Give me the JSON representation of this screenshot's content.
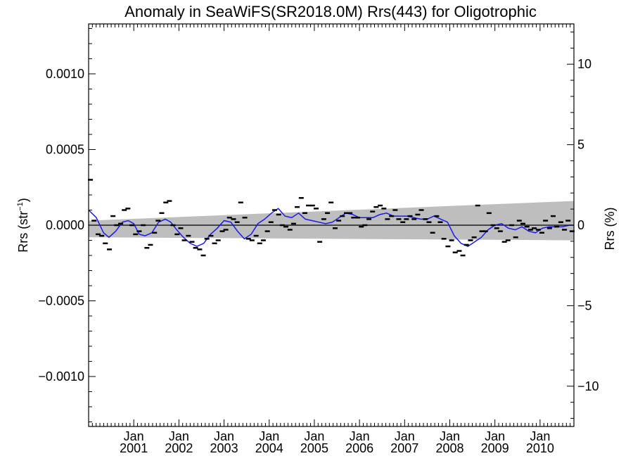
{
  "chart_data": {
    "type": "scatter",
    "title": "Anomaly in SeaWiFS(SR2018.0M) Rrs(443) for Oligotrophic",
    "ylabel_main": "Rrs (str",
    "ylabel_sup": "−1",
    "ylabel_close": ")",
    "y2label": "Rrs (%)",
    "xlim": [
      2000.0,
      2010.75
    ],
    "ylim": [
      -0.00133,
      0.00133
    ],
    "y2lim": [
      -12.5,
      12.5
    ],
    "grid": false,
    "zero_line": true,
    "y_ticks": [
      {
        "value": 0.001,
        "label": "0.0010"
      },
      {
        "value": 0.0005,
        "label": "0.0005"
      },
      {
        "value": 0.0,
        "label": "0.0000"
      },
      {
        "value": -0.0005,
        "label": "−0.0005"
      },
      {
        "value": -0.001,
        "label": "−0.0010"
      }
    ],
    "y2_ticks": [
      {
        "value": 10,
        "label": "10"
      },
      {
        "value": 5,
        "label": "5"
      },
      {
        "value": 0,
        "label": "0"
      },
      {
        "value": -5,
        "label": "−5"
      },
      {
        "value": -10,
        "label": "−10"
      }
    ],
    "x_ticks": [
      {
        "value": 2001.0,
        "month": "Jan",
        "year": "2001"
      },
      {
        "value": 2002.0,
        "month": "Jan",
        "year": "2002"
      },
      {
        "value": 2003.0,
        "month": "Jan",
        "year": "2003"
      },
      {
        "value": 2004.0,
        "month": "Jan",
        "year": "2004"
      },
      {
        "value": 2005.0,
        "month": "Jan",
        "year": "2005"
      },
      {
        "value": 2006.0,
        "month": "Jan",
        "year": "2006"
      },
      {
        "value": 2007.0,
        "month": "Jan",
        "year": "2007"
      },
      {
        "value": 2008.0,
        "month": "Jan",
        "year": "2008"
      },
      {
        "value": 2009.0,
        "month": "Jan",
        "year": "2009"
      },
      {
        "value": 2010.0,
        "month": "Jan",
        "year": "2010"
      }
    ],
    "confidence_band": {
      "x": [
        2000.0,
        2010.75
      ],
      "upper": [
        3e-05,
        0.00016
      ],
      "lower": [
        -8e-05,
        -0.0001
      ]
    },
    "monthly_anomaly": {
      "x": [
        2000.04,
        2000.12,
        2000.21,
        2000.29,
        2000.37,
        2000.46,
        2000.54,
        2000.62,
        2000.71,
        2000.79,
        2000.87,
        2000.96,
        2001.04,
        2001.12,
        2001.21,
        2001.29,
        2001.37,
        2001.46,
        2001.54,
        2001.62,
        2001.71,
        2001.79,
        2001.87,
        2001.96,
        2002.04,
        2002.12,
        2002.21,
        2002.29,
        2002.37,
        2002.46,
        2002.54,
        2002.62,
        2002.71,
        2002.79,
        2002.87,
        2002.96,
        2003.04,
        2003.12,
        2003.21,
        2003.29,
        2003.37,
        2003.46,
        2003.54,
        2003.62,
        2003.71,
        2003.79,
        2003.87,
        2003.96,
        2004.04,
        2004.12,
        2004.21,
        2004.29,
        2004.37,
        2004.46,
        2004.54,
        2004.62,
        2004.71,
        2004.79,
        2004.87,
        2004.96,
        2005.04,
        2005.12,
        2005.21,
        2005.29,
        2005.37,
        2005.46,
        2005.54,
        2005.62,
        2005.71,
        2005.79,
        2005.87,
        2005.96,
        2006.04,
        2006.12,
        2006.21,
        2006.29,
        2006.37,
        2006.46,
        2006.54,
        2006.62,
        2006.71,
        2006.79,
        2006.87,
        2006.96,
        2007.04,
        2007.12,
        2007.21,
        2007.29,
        2007.37,
        2007.46,
        2007.54,
        2007.62,
        2007.71,
        2007.79,
        2007.87,
        2007.96,
        2008.04,
        2008.12,
        2008.21,
        2008.29,
        2008.37,
        2008.46,
        2008.54,
        2008.62,
        2008.71,
        2008.79,
        2008.87,
        2008.96,
        2009.04,
        2009.12,
        2009.21,
        2009.29,
        2009.37,
        2009.46,
        2009.54,
        2009.62,
        2009.71,
        2009.79,
        2009.87,
        2009.96,
        2010.04,
        2010.12,
        2010.21,
        2010.29,
        2010.37,
        2010.46,
        2010.54,
        2010.62,
        2010.71
      ],
      "y": [
        0.0003,
        3e-05,
        -6e-05,
        -7e-05,
        -0.00012,
        -0.00016,
        6e-05,
        0.0,
        1e-05,
        0.0001,
        0.00011,
        0.0,
        -6e-05,
        -4e-05,
        0.0,
        -0.00015,
        -0.00013,
        -5e-05,
        3e-05,
        8e-05,
        0.00015,
        0.00016,
        0.0,
        -6e-05,
        -2e-05,
        -0.0001,
        -7e-05,
        -0.00011,
        -0.00015,
        -0.00016,
        -0.0002,
        -9e-05,
        -7e-05,
        -0.00012,
        -0.0001,
        -4e-05,
        -3e-05,
        5e-05,
        4e-05,
        2e-05,
        0.00015,
        5e-05,
        -9e-05,
        -0.0001,
        -7e-05,
        -0.00012,
        -0.0001,
        -4e-05,
        2e-05,
        0.0001,
        7e-05,
        0.0,
        -1e-05,
        -3e-05,
        1e-05,
        0.00012,
        0.00018,
        8e-05,
        0.00013,
        0.00013,
        0.00011,
        -0.00011,
        4e-05,
        8e-05,
        0.00015,
        -2e-05,
        3e-05,
        6e-05,
        8e-05,
        8e-05,
        5e-05,
        5e-05,
        -1e-05,
        0.0,
        4e-05,
        9e-05,
        0.00012,
        0.00013,
        0.00011,
        4e-05,
        6e-05,
        0.0001,
        4e-05,
        2e-05,
        4e-05,
        6e-05,
        4e-05,
        7e-05,
        0.0001,
        4e-05,
        2e-05,
        -5e-05,
        6e-05,
        2e-05,
        -9e-05,
        -0.00014,
        -0.0001,
        -0.00018,
        -0.00017,
        -0.0002,
        -0.00013,
        -0.0001,
        -8e-05,
        0.00013,
        -4e-05,
        -4e-05,
        8e-05,
        0.0,
        -2e-05,
        -4e-05,
        -0.00011,
        -0.0001,
        0.0,
        -8e-05,
        3e-05,
        1e-05,
        -1e-05,
        -3e-05,
        -2e-05,
        -3e-05,
        -5e-05,
        3e-05,
        -2e-05,
        6e-05,
        -1e-05,
        2e-05,
        -3e-05,
        3e-05,
        -4e-05
      ]
    },
    "running_mean": {
      "x": [
        2000.0,
        2000.17,
        2000.33,
        2000.45,
        2000.6,
        2000.75,
        2000.88,
        2001.0,
        2001.12,
        2001.25,
        2001.4,
        2001.55,
        2001.7,
        2001.82,
        2001.95,
        2002.1,
        2002.25,
        2002.4,
        2002.55,
        2002.7,
        2002.85,
        2003.0,
        2003.15,
        2003.3,
        2003.45,
        2003.6,
        2003.75,
        2003.9,
        2004.05,
        2004.2,
        2004.35,
        2004.5,
        2004.65,
        2004.8,
        2004.95,
        2005.1,
        2005.25,
        2005.4,
        2005.55,
        2005.7,
        2005.85,
        2006.0,
        2006.15,
        2006.3,
        2006.45,
        2006.6,
        2006.75,
        2006.9,
        2007.05,
        2007.2,
        2007.35,
        2007.5,
        2007.65,
        2007.8,
        2007.95,
        2008.1,
        2008.25,
        2008.4,
        2008.55,
        2008.7,
        2008.85,
        2009.0,
        2009.15,
        2009.3,
        2009.45,
        2009.6,
        2009.75,
        2009.9,
        2010.05,
        2010.2,
        2010.35,
        2010.5,
        2010.65,
        2010.75
      ],
      "y": [
        0.0001,
        5e-05,
        -5e-05,
        -8e-05,
        -4e-05,
        2e-05,
        3e-05,
        1e-05,
        -6e-05,
        -7e-05,
        -5e-05,
        2e-05,
        4e-05,
        2e-05,
        -3e-05,
        -8e-05,
        -0.00012,
        -0.00014,
        -0.00012,
        -6e-05,
        -2e-05,
        3e-05,
        2e-05,
        -4e-05,
        -9e-05,
        -6e-05,
        1e-05,
        4e-05,
        8e-05,
        0.00011,
        6e-05,
        5e-05,
        8e-05,
        4e-05,
        3e-05,
        2e-05,
        1e-05,
        2e-05,
        5e-05,
        8e-05,
        7e-05,
        5e-05,
        5e-05,
        5e-05,
        7e-05,
        8e-05,
        6e-05,
        6e-05,
        6e-05,
        5e-05,
        4e-05,
        4e-05,
        6e-05,
        4e-05,
        2e-05,
        -7e-05,
        -0.00012,
        -0.00014,
        -0.00011,
        -8e-05,
        -3e-05,
        0.0,
        1e-05,
        -2e-05,
        -3e-05,
        -1e-05,
        -4e-05,
        -5e-05,
        -2e-05,
        -1e-05,
        -1e-05,
        -1e-05,
        0.0,
        0.0
      ]
    },
    "colors": {
      "band": "#bebebe",
      "running_mean": "#1a1aee",
      "points": "#000000",
      "axes": "#000000"
    }
  }
}
